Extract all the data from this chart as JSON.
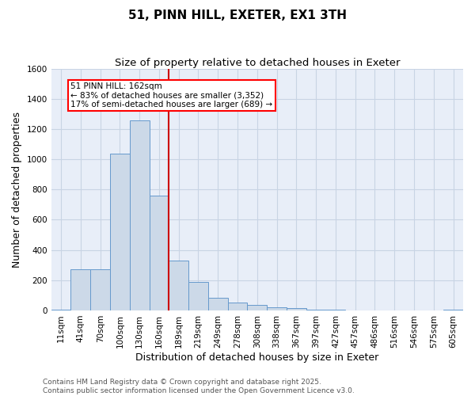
{
  "title_line1": "51, PINN HILL, EXETER, EX1 3TH",
  "title_line2": "Size of property relative to detached houses in Exeter",
  "xlabel": "Distribution of detached houses by size in Exeter",
  "ylabel": "Number of detached properties",
  "categories": [
    "11sqm",
    "41sqm",
    "70sqm",
    "100sqm",
    "130sqm",
    "160sqm",
    "189sqm",
    "219sqm",
    "249sqm",
    "278sqm",
    "308sqm",
    "338sqm",
    "367sqm",
    "397sqm",
    "427sqm",
    "457sqm",
    "486sqm",
    "516sqm",
    "546sqm",
    "575sqm",
    "605sqm"
  ],
  "values": [
    5,
    270,
    270,
    1040,
    1260,
    760,
    330,
    190,
    85,
    50,
    35,
    20,
    15,
    5,
    3,
    2,
    1,
    1,
    1,
    1,
    5
  ],
  "bar_color": "#ccd9e8",
  "bar_edge_color": "#6699cc",
  "red_line_x": 5.5,
  "annotation_line1": "51 PINN HILL: 162sqm",
  "annotation_line2": "← 83% of detached houses are smaller (3,352)",
  "annotation_line3": "17% of semi-detached houses are larger (689) →",
  "annotation_box_color": "white",
  "annotation_box_edge": "red",
  "ylim": [
    0,
    1600
  ],
  "yticks": [
    0,
    200,
    400,
    600,
    800,
    1000,
    1200,
    1400,
    1600
  ],
  "grid_color": "#c8d4e4",
  "background_color": "#e8eef8",
  "footer_line1": "Contains HM Land Registry data © Crown copyright and database right 2025.",
  "footer_line2": "Contains public sector information licensed under the Open Government Licence v3.0.",
  "title_fontsize": 11,
  "subtitle_fontsize": 9.5,
  "axis_label_fontsize": 9,
  "tick_fontsize": 7.5,
  "annotation_fontsize": 7.5,
  "footer_fontsize": 6.5
}
